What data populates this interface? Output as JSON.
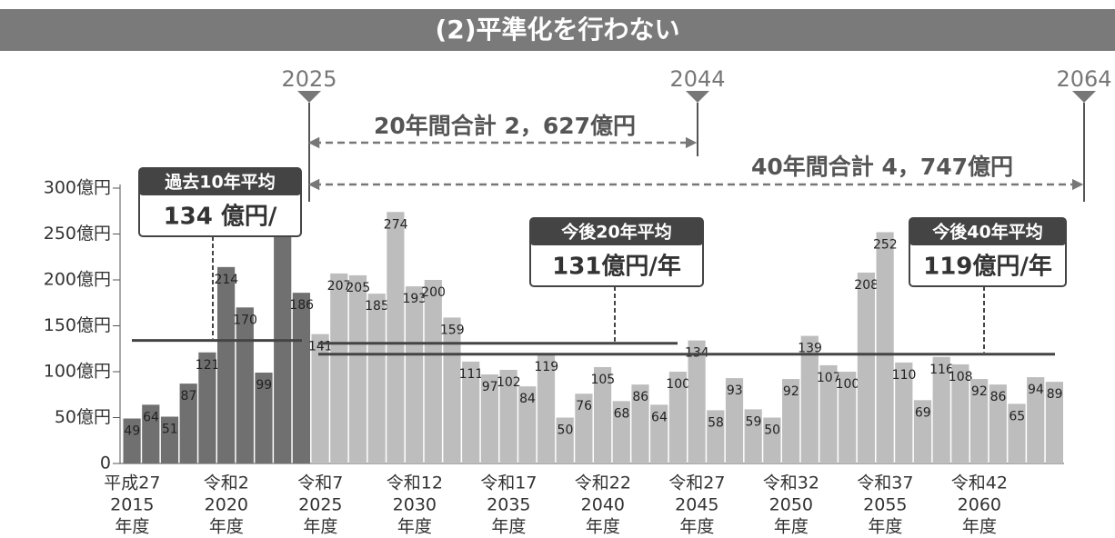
{
  "chart_data": {
    "type": "bar",
    "title": "(2)平準化を行わない",
    "categories": [
      [
        "平成27",
        "2015",
        "年度"
      ],
      null,
      null,
      null,
      null,
      [
        "令和2",
        "2020",
        "年度"
      ],
      null,
      null,
      null,
      null,
      [
        "令和7",
        "2025",
        "年度"
      ],
      null,
      null,
      null,
      null,
      [
        "令和12",
        "2030",
        "年度"
      ],
      null,
      null,
      null,
      null,
      [
        "令和17",
        "2035",
        "年度"
      ],
      null,
      null,
      null,
      null,
      [
        "令和22",
        "2040",
        "年度"
      ],
      null,
      null,
      null,
      null,
      [
        "令和27",
        "2045",
        "年度"
      ],
      null,
      null,
      null,
      null,
      [
        "令和32",
        "2050",
        "年度"
      ],
      null,
      null,
      null,
      null,
      [
        "令和37",
        "2055",
        "年度"
      ],
      null,
      null,
      null,
      null,
      [
        "令和42",
        "2060",
        "年度"
      ],
      null,
      null,
      null,
      null
    ],
    "series": [
      {
        "color": "#707070",
        "values": [
          49,
          64,
          51,
          87,
          121,
          214,
          170,
          99,
          303,
          186,
          null,
          null,
          null,
          null,
          null,
          null,
          null,
          null,
          null,
          null,
          null,
          null,
          null,
          null,
          null,
          null,
          null,
          null,
          null,
          null,
          null,
          null,
          null,
          null,
          null,
          null,
          null,
          null,
          null,
          null,
          null,
          null,
          null,
          null,
          null,
          null,
          null,
          null,
          null,
          null
        ]
      },
      {
        "color": "#bdbdbd",
        "values": [
          null,
          null,
          null,
          null,
          null,
          null,
          null,
          null,
          null,
          null,
          141,
          207,
          205,
          185,
          274,
          193,
          200,
          159,
          111,
          97,
          102,
          84,
          119,
          50,
          76,
          105,
          68,
          86,
          64,
          100,
          134,
          58,
          93,
          59,
          50,
          92,
          139,
          107,
          100,
          208,
          252,
          110,
          69,
          116,
          108,
          92,
          86,
          65,
          94,
          89
        ]
      }
    ],
    "ylim": [
      0,
      300
    ],
    "yticks": [
      0,
      {
        "value": 50,
        "label": "50億円"
      },
      {
        "value": 100,
        "label": "100億円"
      },
      {
        "value": 150,
        "label": "150億円"
      },
      {
        "value": 200,
        "label": "200億円"
      },
      {
        "value": 250,
        "label": "250億円"
      },
      {
        "value": 300,
        "label": "300億円"
      }
    ],
    "year_markers": [
      "2025",
      "2044",
      "2064"
    ],
    "spans": [
      "20年間合計 2，627億円",
      "40年間合計 4，747億円"
    ],
    "reference_lines": [
      {
        "name": "過去10年平均",
        "value": 134,
        "value_label": "134 億円/"
      },
      {
        "name": "今後20年平均",
        "value": 131,
        "value_label": "131億円/年"
      },
      {
        "name": "今後40年平均",
        "value": 119,
        "value_label": "119億円/年"
      }
    ]
  }
}
